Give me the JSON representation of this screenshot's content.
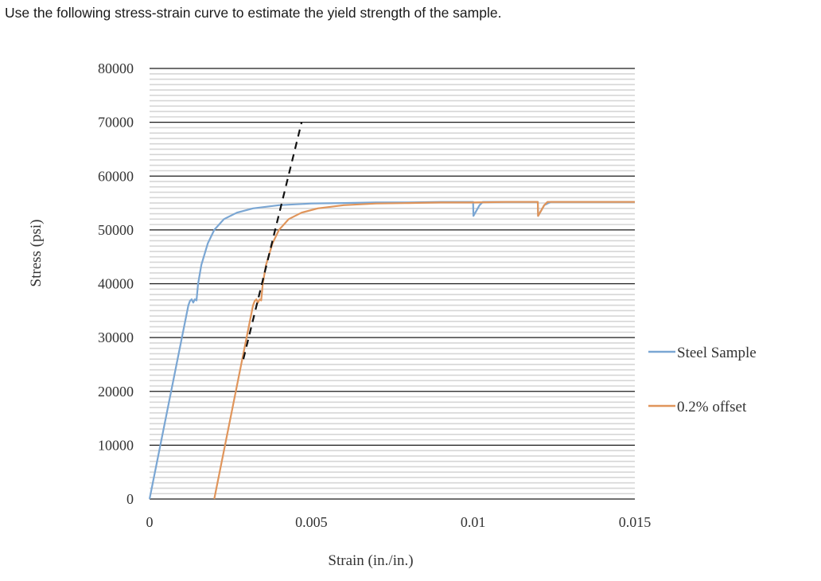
{
  "question": "Use the following stress-strain curve to estimate the yield strength of the sample.",
  "colors": {
    "steel": "#7aa6d3",
    "offset": "#e0955b",
    "elastic_line": "#111111",
    "major_grid": "#1a1a1a",
    "minor_grid": "#d6d6d6",
    "text": "#333333"
  },
  "chart_data": {
    "type": "line",
    "title": "",
    "xlabel": "Strain (in./in.)",
    "ylabel": "Stress (psi)",
    "xlim": [
      0,
      0.015
    ],
    "ylim": [
      0,
      80000
    ],
    "x_ticks": [
      "0",
      "0.005",
      "0.01",
      "0.015"
    ],
    "y_ticks": [
      "0",
      "10000",
      "20000",
      "30000",
      "40000",
      "50000",
      "60000",
      "70000",
      "80000"
    ],
    "grid": "horizontal major every 10000 with minor lines every 1000",
    "legend_position": "right",
    "series": [
      {
        "name": "Steel Sample",
        "x": [
          0,
          0.0012,
          0.00125,
          0.0013,
          0.00135,
          0.0014,
          0.00145,
          0.0015,
          0.0016,
          0.0018,
          0.002,
          0.0023,
          0.0027,
          0.0032,
          0.004,
          0.005,
          0.006,
          0.007,
          0.008,
          0.009,
          0.01,
          0.01001,
          0.0102,
          0.0103,
          0.0105,
          0.012,
          0.01201,
          0.0122,
          0.0124,
          0.015
        ],
        "y": [
          0,
          36000,
          36800,
          37100,
          36500,
          37100,
          36900,
          40000,
          43500,
          47500,
          50000,
          52000,
          53200,
          54000,
          54600,
          54900,
          55000,
          55100,
          55100,
          55200,
          55200,
          52600,
          54600,
          55200,
          55200,
          55200,
          52600,
          54600,
          55200,
          55200
        ]
      },
      {
        "name": "0.2% offset",
        "x": [
          0.002,
          0.0032,
          0.00325,
          0.0033,
          0.00335,
          0.0034,
          0.00345,
          0.0035,
          0.0036,
          0.0038,
          0.004,
          0.0043,
          0.0047,
          0.0052,
          0.006,
          0.007,
          0.008,
          0.009,
          0.01,
          0.011,
          0.012,
          0.01201,
          0.0122,
          0.0123,
          0.0125,
          0.015
        ],
        "y": [
          0,
          36000,
          36800,
          37100,
          36500,
          37100,
          36900,
          40000,
          43500,
          47500,
          50000,
          52000,
          53200,
          54000,
          54600,
          54900,
          55000,
          55100,
          55100,
          55200,
          55200,
          52600,
          54600,
          55200,
          55200,
          55200
        ]
      }
    ],
    "annotations": [
      {
        "type": "dashed-line",
        "x": [
          0.0029,
          0.0047
        ],
        "y": [
          26000,
          70000
        ]
      }
    ]
  }
}
